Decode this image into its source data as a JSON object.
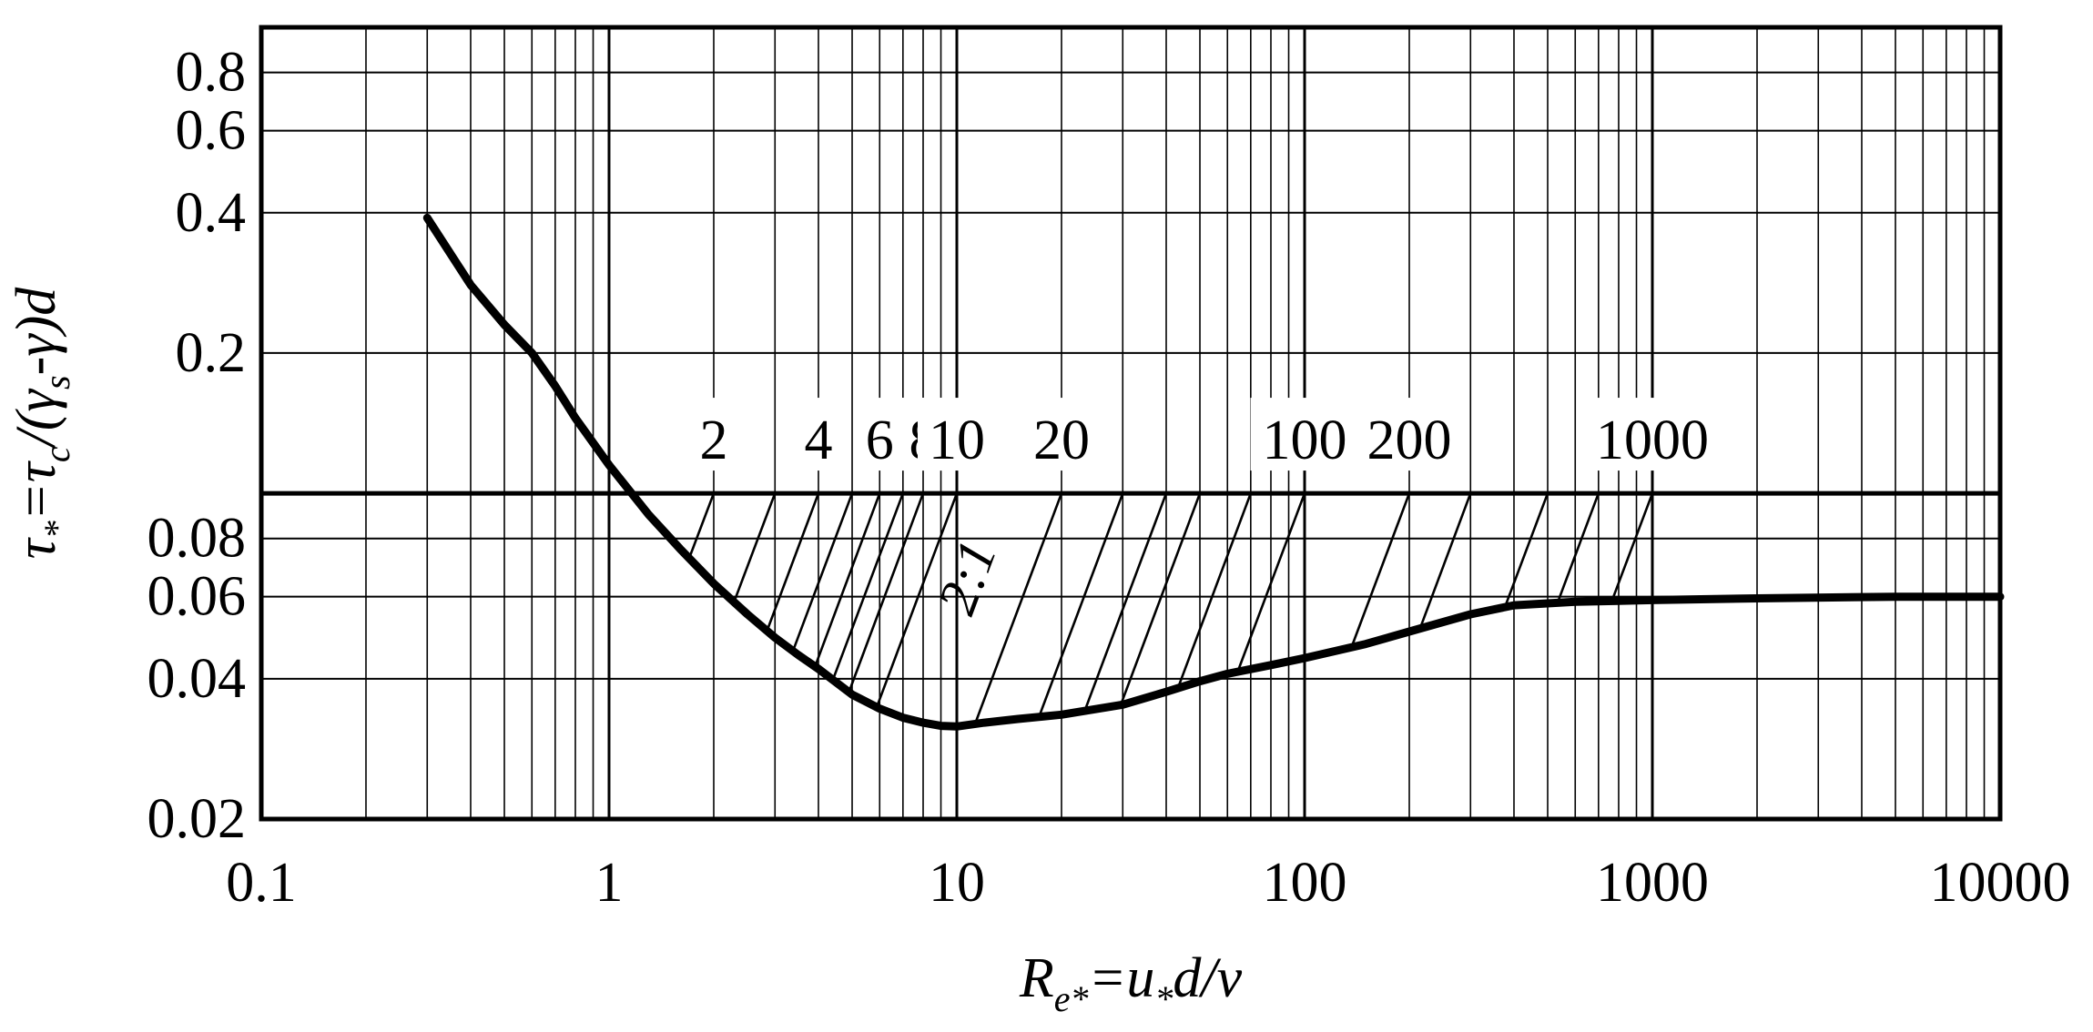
{
  "chart_data": {
    "type": "line",
    "title": "",
    "xscale": "log",
    "yscale": "log",
    "xlim": [
      0.1,
      10000
    ],
    "ylim": [
      0.02,
      1.0
    ],
    "grid": true,
    "xlabel": {
      "main": "R",
      "sub": "e*",
      "rest": "=u",
      "sub2": "*",
      "tail": "d/ν"
    },
    "ylabel": {
      "main": "τ",
      "sub": "*",
      "mid": "=τ",
      "sub2": "c",
      "mid2": "/(γ",
      "sub3": "s",
      "tail": "-γ)d"
    },
    "x_ticks": [
      {
        "value": 0.1,
        "label": "0.1"
      },
      {
        "value": 1,
        "label": "1"
      },
      {
        "value": 10,
        "label": "10"
      },
      {
        "value": 100,
        "label": "100"
      },
      {
        "value": 1000,
        "label": "1000"
      },
      {
        "value": 10000,
        "label": "10000"
      }
    ],
    "y_ticks": [
      {
        "value": 0.02,
        "label": "0.02"
      },
      {
        "value": 0.04,
        "label": "0.04"
      },
      {
        "value": 0.06,
        "label": "0.06"
      },
      {
        "value": 0.08,
        "label": "0.08"
      },
      {
        "value": 0.2,
        "label": "0.2"
      },
      {
        "value": 0.4,
        "label": "0.4"
      },
      {
        "value": 0.6,
        "label": "0.6"
      },
      {
        "value": 0.8,
        "label": "0.8"
      }
    ],
    "reference_line_y": 0.1,
    "series": [
      {
        "x": [
          0.3,
          0.4,
          0.5,
          0.6,
          0.7,
          0.8,
          1.0,
          1.3,
          1.6,
          2.0,
          2.5,
          3.0,
          3.5,
          4.0,
          5.0,
          6.0,
          7.0,
          8.0,
          9.0,
          10.0,
          12.0,
          15.0,
          20.0,
          30.0,
          40.0,
          50.0,
          60.0,
          80.0,
          100.0,
          150.0,
          200.0,
          300.0,
          400.0,
          600.0,
          1000.0,
          2000.0,
          5000.0,
          10000.0
        ],
        "y": [
          0.39,
          0.28,
          0.23,
          0.2,
          0.17,
          0.145,
          0.115,
          0.09,
          0.076,
          0.064,
          0.055,
          0.049,
          0.045,
          0.042,
          0.037,
          0.0345,
          0.033,
          0.0322,
          0.0317,
          0.0316,
          0.0322,
          0.0328,
          0.0335,
          0.0352,
          0.0375,
          0.0395,
          0.041,
          0.0428,
          0.0443,
          0.0475,
          0.0505,
          0.055,
          0.0575,
          0.0585,
          0.059,
          0.0595,
          0.06,
          0.06
        ]
      }
    ],
    "hatching": {
      "slope_label": "2:1",
      "lines": [
        {
          "top_x": 2,
          "label": "2"
        },
        {
          "top_x": 3,
          "label": ""
        },
        {
          "top_x": 4,
          "label": "4"
        },
        {
          "top_x": 5,
          "label": ""
        },
        {
          "top_x": 6,
          "label": "6"
        },
        {
          "top_x": 7,
          "label": ""
        },
        {
          "top_x": 8,
          "label": "8"
        },
        {
          "top_x": 10,
          "label": "10"
        },
        {
          "top_x": 20,
          "label": "20"
        },
        {
          "top_x": 30,
          "label": ""
        },
        {
          "top_x": 40,
          "label": ""
        },
        {
          "top_x": 50,
          "label": ""
        },
        {
          "top_x": 70,
          "label": ""
        },
        {
          "top_x": 100,
          "label": "100"
        },
        {
          "top_x": 200,
          "label": "200"
        },
        {
          "top_x": 300,
          "label": ""
        },
        {
          "top_x": 500,
          "label": ""
        },
        {
          "top_x": 700,
          "label": ""
        },
        {
          "top_x": 1000,
          "label": "1000"
        }
      ]
    }
  }
}
